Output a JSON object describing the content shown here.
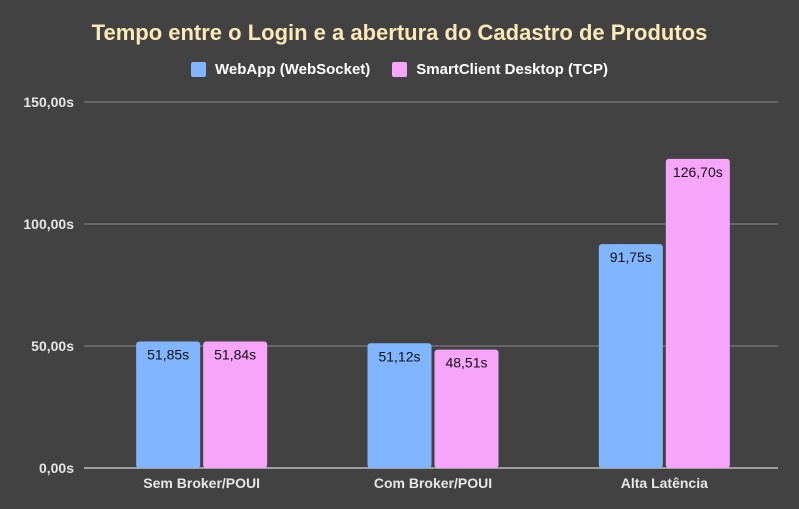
{
  "chart_data": {
    "type": "bar",
    "title": "Tempo entre o Login e a abertura do Cadastro de Produtos",
    "categories": [
      "Sem Broker/POUI",
      "Com Broker/POUI",
      "Alta Latência"
    ],
    "series": [
      {
        "name": "WebApp (WebSocket)",
        "color": "#82b5ff",
        "values": [
          51.85,
          51.12,
          91.75
        ],
        "labels": [
          "51,85s",
          "51,12s",
          "91,75s"
        ]
      },
      {
        "name": "SmartClient Desktop (TCP)",
        "color": "#f7a5fb",
        "values": [
          51.84,
          48.51,
          126.7
        ],
        "labels": [
          "51,84s",
          "48,51s",
          "126,70s"
        ]
      }
    ],
    "ylim": [
      0,
      150
    ],
    "yticks": [
      0,
      50,
      100,
      150
    ],
    "ytick_labels": [
      "0,00s",
      "50,00s",
      "100,00s",
      "150,00s"
    ],
    "grid": true,
    "legend_position": "top"
  },
  "colors": {
    "background": "#424242",
    "title": "#fce9b7",
    "grid": "#8a8a8a",
    "text": "#e6e6e6"
  }
}
